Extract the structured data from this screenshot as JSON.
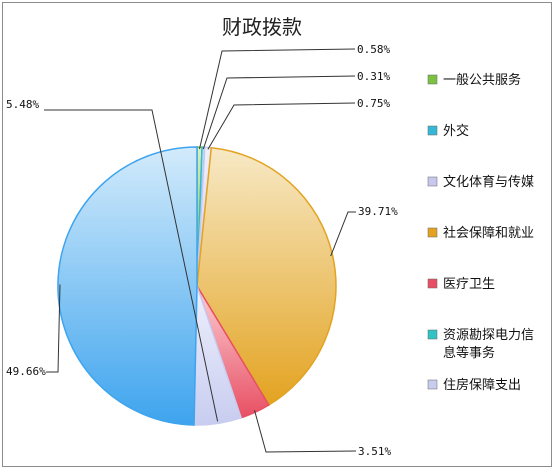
{
  "chart_data": {
    "type": "pie",
    "title": "财政拨款",
    "slices": [
      {
        "name": "一般公共服务",
        "value": 0.58,
        "label": "0.58%",
        "color": "#7cc242",
        "color_light": "#d9efc0"
      },
      {
        "name": "外交",
        "value": 0.31,
        "label": "0.31%",
        "color": "#35b8d8",
        "color_light": "#cdeef7"
      },
      {
        "name": "文化体育与传媒",
        "value": 0.75,
        "label": "0.75%",
        "color": "#c8c8ee",
        "color_light": "#f1f1fc"
      },
      {
        "name": "社会保障和就业",
        "value": 39.71,
        "label": "39.71%",
        "color": "#e3a321",
        "color_light": "#f7e9c6"
      },
      {
        "name": "医疗卫生",
        "value": 3.51,
        "label": "3.51%",
        "color": "#e84f63",
        "color_light": "#fbd0d6"
      },
      {
        "name": "资源勘探电力信息等事务",
        "value": 0.0,
        "label": "",
        "color": "#31c4c4",
        "color_light": "#c9f0f0"
      },
      {
        "name": "住房保障支出",
        "value": 5.48,
        "label": "5.48%",
        "color": "#c8cdf0",
        "color_light": "#eef0fc"
      },
      {
        "name": "",
        "value": 49.66,
        "label": "49.66%",
        "color": "#3ea4ee",
        "color_light": "#d3ebfb"
      }
    ],
    "legend": {
      "position": "right",
      "items": [
        {
          "name": "一般公共服务",
          "lines": [
            "一般公共服务"
          ],
          "color": "#7cc242"
        },
        {
          "name": "外交",
          "lines": [
            "外交"
          ],
          "color": "#35b8d8"
        },
        {
          "name": "文化体育与传媒",
          "lines": [
            "文化体育与传媒"
          ],
          "color": "#c8c8ee"
        },
        {
          "name": "社会保障和就业",
          "lines": [
            "社会保障和就业"
          ],
          "color": "#e3a321"
        },
        {
          "name": "医疗卫生",
          "lines": [
            "医疗卫生"
          ],
          "color": "#e84f63"
        },
        {
          "name": "资源勘探电力信息等事务",
          "lines": [
            "资源勘探电力信",
            "息等事务"
          ],
          "color": "#31c4c4"
        },
        {
          "name": "住房保障支出",
          "lines": [
            "住房保障支出"
          ],
          "color": "#c8cdf0"
        }
      ]
    }
  }
}
